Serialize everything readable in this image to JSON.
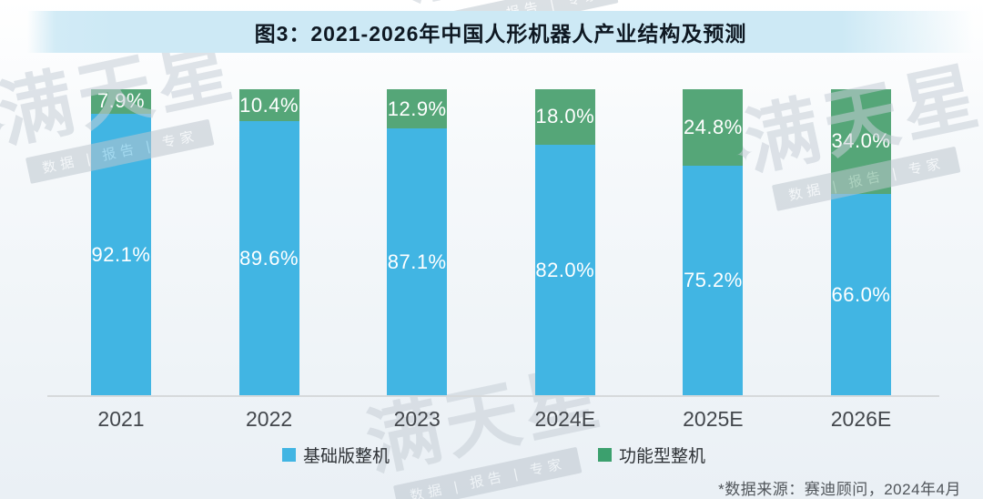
{
  "title": "图3：2021-2026年中国人形机器人产业结构及预测",
  "chart_data": {
    "type": "bar",
    "subtype": "stacked-percent",
    "title": "图3：2021-2026年中国人形机器人产业结构及预测",
    "categories": [
      "2021",
      "2022",
      "2023",
      "2024E",
      "2025E",
      "2026E"
    ],
    "series": [
      {
        "name": "基础版整机",
        "color": "#41b5e3",
        "values": [
          92.1,
          89.6,
          87.1,
          82.0,
          75.2,
          66.0
        ]
      },
      {
        "name": "功能型整机",
        "color": "#55a678",
        "values": [
          7.9,
          10.4,
          12.9,
          18.0,
          24.8,
          34.0
        ]
      }
    ],
    "value_format": "percent",
    "ylim": [
      0,
      100
    ],
    "grid": false,
    "axis_line_color": "#d6d9db",
    "legend_position": "bottom"
  },
  "legend": {
    "basic_label": "基础版整机",
    "basic_color": "#41b5e3",
    "func_label": "功能型整机",
    "func_color": "#3ca06e"
  },
  "source_note": "*数据来源：赛迪顾问，2024年4月",
  "watermark": {
    "star": "✦",
    "brand": "满天星",
    "tagline": "数据 | 报告 | 专家"
  }
}
